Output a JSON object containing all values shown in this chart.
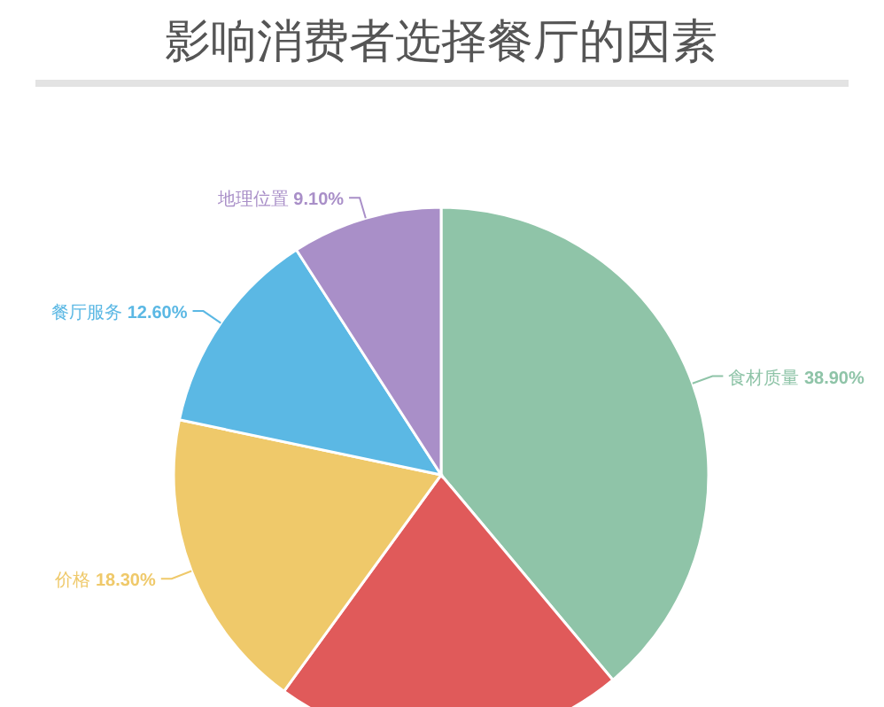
{
  "chart_data": {
    "type": "pie",
    "title": "影响消费者选择餐厅的因素",
    "categories": [
      "食材质量",
      null,
      "价格",
      "餐厅服务",
      "地理位置"
    ],
    "values": [
      38.9,
      21.1,
      18.3,
      12.6,
      9.1
    ],
    "value_labels": [
      "38.90%",
      null,
      "18.30%",
      "12.60%",
      "9.10%"
    ],
    "colors": [
      "#8fc4a8",
      "#e05a5a",
      "#efc96a",
      "#5bb8e4",
      "#a98fc8"
    ]
  }
}
